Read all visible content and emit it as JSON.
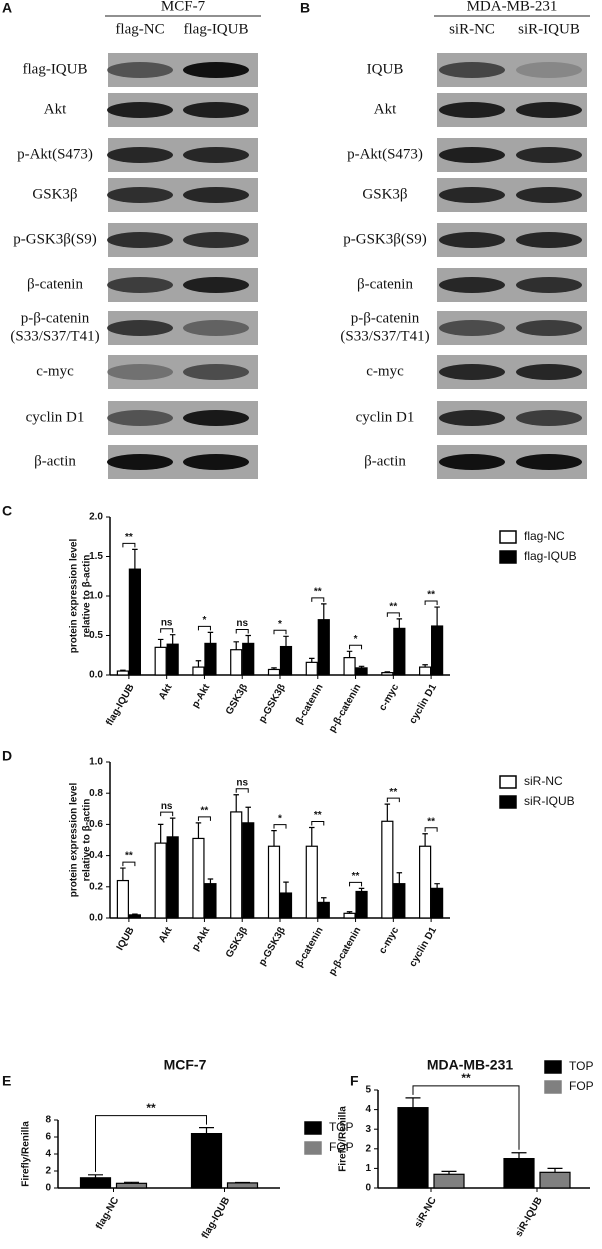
{
  "blots": [
    {
      "panel": "A",
      "title": "MCF-7",
      "columns": [
        "flag-NC",
        "flag-IQUB"
      ],
      "rows": [
        [
          "flag-IQUB"
        ],
        [
          "Akt"
        ],
        [
          "p-Akt(S473)"
        ],
        [
          "GSK3β"
        ],
        [
          "p-GSK3β(S9)"
        ],
        [
          "β-catenin"
        ],
        [
          "p-β-catenin",
          "(S33/S37/T41)"
        ],
        [
          "c-myc"
        ],
        [
          "cyclin D1"
        ],
        [
          "β-actin"
        ]
      ]
    },
    {
      "panel": "B",
      "title": "MDA-MB-231",
      "columns": [
        "siR-NC",
        "siR-IQUB"
      ],
      "rows": [
        [
          "IQUB"
        ],
        [
          "Akt"
        ],
        [
          "p-Akt(S473)"
        ],
        [
          "GSK3β"
        ],
        [
          "p-GSK3β(S9)"
        ],
        [
          "β-catenin"
        ],
        [
          "p-β-catenin",
          "(S33/S37/T41)"
        ],
        [
          "c-myc"
        ],
        [
          "cyclin D1"
        ],
        [
          "β-actin"
        ]
      ]
    }
  ],
  "chart_data": [
    {
      "type": "bar",
      "panel": "C",
      "ylabel": [
        "protein expression level",
        "relative to β-actin"
      ],
      "categories": [
        "flag-IQUB",
        "Akt",
        "p-Akt",
        "GSK3β",
        "p-GSK3β",
        "β-catenin",
        "p-β-catenin",
        "c-myc",
        "cyclin D1"
      ],
      "series": [
        {
          "name": "flag-NC",
          "color": "#ffffff",
          "values": [
            0.05,
            0.35,
            0.1,
            0.32,
            0.07,
            0.16,
            0.22,
            0.03,
            0.1
          ],
          "errors": [
            0.01,
            0.1,
            0.08,
            0.1,
            0.02,
            0.05,
            0.08,
            0.01,
            0.03
          ]
        },
        {
          "name": "flag-IQUB",
          "color": "#000000",
          "values": [
            1.34,
            0.39,
            0.4,
            0.4,
            0.36,
            0.7,
            0.09,
            0.59,
            0.62
          ],
          "errors": [
            0.25,
            0.12,
            0.14,
            0.1,
            0.13,
            0.2,
            0.02,
            0.12,
            0.24
          ]
        }
      ],
      "significance": [
        "**",
        "ns",
        "*",
        "ns",
        "*",
        "**",
        "*",
        "**",
        "**"
      ],
      "ylim": [
        0,
        2
      ],
      "yticks": [
        {
          "value": 0,
          "label": "0.0"
        },
        {
          "value": 0.5,
          "label": "0.5"
        },
        {
          "value": 1,
          "label": "1.0"
        },
        {
          "value": 1.5,
          "label": "1.5"
        },
        {
          "value": 2,
          "label": "2.0"
        }
      ]
    },
    {
      "type": "bar",
      "panel": "D",
      "ylabel": [
        "protein expression level",
        "relative to β-actin"
      ],
      "categories": [
        "IQUB",
        "Akt",
        "p-Akt",
        "GSK3β",
        "p-GSK3β",
        "β-catenin",
        "p-β-catenin",
        "c-myc",
        "cyclin D1"
      ],
      "series": [
        {
          "name": "siR-NC",
          "color": "#ffffff",
          "values": [
            0.24,
            0.48,
            0.51,
            0.68,
            0.46,
            0.46,
            0.03,
            0.62,
            0.46
          ],
          "errors": [
            0.08,
            0.12,
            0.1,
            0.11,
            0.1,
            0.12,
            0.01,
            0.11,
            0.08
          ]
        },
        {
          "name": "siR-IQUB",
          "color": "#000000",
          "values": [
            0.02,
            0.52,
            0.22,
            0.61,
            0.16,
            0.1,
            0.17,
            0.22,
            0.19
          ],
          "errors": [
            0.005,
            0.12,
            0.03,
            0.1,
            0.07,
            0.03,
            0.02,
            0.07,
            0.03
          ]
        }
      ],
      "significance": [
        "**",
        "ns",
        "**",
        "ns",
        "*",
        "**",
        "**",
        "**",
        "**"
      ],
      "ylim": [
        0,
        1
      ],
      "yticks": [
        {
          "value": 0,
          "label": "0.0"
        },
        {
          "value": 0.2,
          "label": "0.2"
        },
        {
          "value": 0.4,
          "label": "0.4"
        },
        {
          "value": 0.6,
          "label": "0.6"
        },
        {
          "value": 0.8,
          "label": "0.8"
        },
        {
          "value": 1,
          "label": "1.0"
        }
      ]
    },
    {
      "type": "bar",
      "panel": "E",
      "title": "MCF-7",
      "ylabel": [
        "Firefly/Renilla"
      ],
      "categories": [
        "flag-NC",
        "flag-IQUB"
      ],
      "series": [
        {
          "name": "TOP",
          "color": "#000000",
          "values": [
            1.2,
            6.4
          ],
          "errors": [
            0.35,
            0.7
          ]
        },
        {
          "name": "FOP",
          "color": "#808080",
          "values": [
            0.55,
            0.6
          ],
          "errors": [
            0.12,
            0.05
          ]
        }
      ],
      "comparison": "**",
      "ylim": [
        0,
        8
      ],
      "yticks": [
        0,
        2,
        4,
        6,
        8
      ]
    },
    {
      "type": "bar",
      "panel": "F",
      "title": "MDA-MB-231",
      "ylabel": [
        "Firefly/Renilla"
      ],
      "categories": [
        "siR-NC",
        "siR-IQUB"
      ],
      "series": [
        {
          "name": "TOP",
          "color": "#000000",
          "values": [
            4.1,
            1.5
          ],
          "errors": [
            0.5,
            0.3
          ]
        },
        {
          "name": "FOP",
          "color": "#808080",
          "values": [
            0.7,
            0.8
          ],
          "errors": [
            0.15,
            0.2
          ]
        }
      ],
      "comparison": "**",
      "ylim": [
        0,
        5
      ],
      "yticks": [
        0,
        1,
        2,
        3,
        4,
        5
      ]
    }
  ]
}
